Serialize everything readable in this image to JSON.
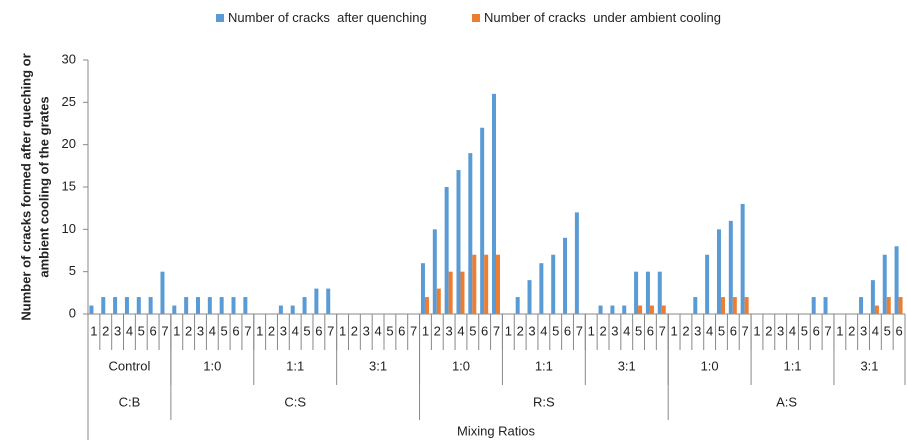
{
  "chart_data": {
    "type": "bar",
    "legend": "top",
    "y_axis_label": [
      "Number of cracks formed after queching or",
      "ambient cooling of the grates"
    ],
    "x_axis_label": "Mixing Ratios",
    "groups": [
      {
        "name": "C:B",
        "subgroups": [
          {
            "name": "Control",
            "categories": [
              "1",
              "2",
              "3",
              "4",
              "5",
              "6",
              "7"
            ]
          }
        ]
      },
      {
        "name": "C:S",
        "subgroups": [
          {
            "name": "1:0",
            "categories": [
              "1",
              "2",
              "3",
              "4",
              "5",
              "6",
              "7"
            ]
          },
          {
            "name": "1:1",
            "categories": [
              "1",
              "2",
              "3",
              "4",
              "5",
              "6",
              "7"
            ]
          },
          {
            "name": "3:1",
            "categories": [
              "1",
              "2",
              "3",
              "4",
              "5",
              "6",
              "7"
            ]
          }
        ]
      },
      {
        "name": "R:S",
        "subgroups": [
          {
            "name": "1:0",
            "categories": [
              "1",
              "2",
              "3",
              "4",
              "5",
              "6",
              "7"
            ]
          },
          {
            "name": "1:1",
            "categories": [
              "1",
              "2",
              "3",
              "4",
              "5",
              "6",
              "7"
            ]
          },
          {
            "name": "3:1",
            "categories": [
              "1",
              "2",
              "3",
              "4",
              "5",
              "6",
              "7"
            ]
          }
        ]
      },
      {
        "name": "A:S",
        "subgroups": [
          {
            "name": "1:0",
            "categories": [
              "1",
              "2",
              "3",
              "4",
              "5",
              "6",
              "7"
            ]
          },
          {
            "name": "1:1",
            "categories": [
              "1",
              "2",
              "3",
              "4",
              "5",
              "6",
              "7"
            ]
          },
          {
            "name": "3:1",
            "categories": [
              "1",
              "2",
              "3",
              "4",
              "5",
              "6"
            ]
          }
        ]
      }
    ],
    "series": [
      {
        "name": "Number of cracks  after quenching",
        "color": "#5b9bd5",
        "values": [
          1,
          2,
          2,
          2,
          2,
          2,
          5,
          1,
          2,
          2,
          2,
          2,
          2,
          2,
          0,
          0,
          1,
          1,
          2,
          3,
          3,
          0,
          0,
          0,
          0,
          0,
          0,
          0,
          6,
          10,
          15,
          17,
          19,
          22,
          26,
          0,
          2,
          4,
          6,
          7,
          9,
          12,
          0,
          1,
          1,
          1,
          5,
          5,
          5,
          0,
          0,
          2,
          7,
          10,
          11,
          13,
          0,
          0,
          0,
          0,
          0,
          2,
          2,
          0,
          0,
          2,
          4,
          7,
          8
        ]
      },
      {
        "name": "Number of cracks  under ambient cooling",
        "color": "#ed7d31",
        "values": [
          0,
          0,
          0,
          0,
          0,
          0,
          0,
          0,
          0,
          0,
          0,
          0,
          0,
          0,
          0,
          0,
          0,
          0,
          0,
          0,
          0,
          0,
          0,
          0,
          0,
          0,
          0,
          0,
          2,
          3,
          5,
          5,
          7,
          7,
          7,
          0,
          0,
          0,
          0,
          0,
          0,
          0,
          0,
          0,
          0,
          0,
          1,
          1,
          1,
          0,
          0,
          0,
          0,
          2,
          2,
          2,
          0,
          0,
          0,
          0,
          0,
          0,
          0,
          0,
          0,
          0,
          1,
          2,
          2
        ]
      }
    ],
    "ylim": [
      0,
      30
    ],
    "yticks": [
      0,
      5,
      10,
      15,
      20,
      25,
      30
    ]
  }
}
